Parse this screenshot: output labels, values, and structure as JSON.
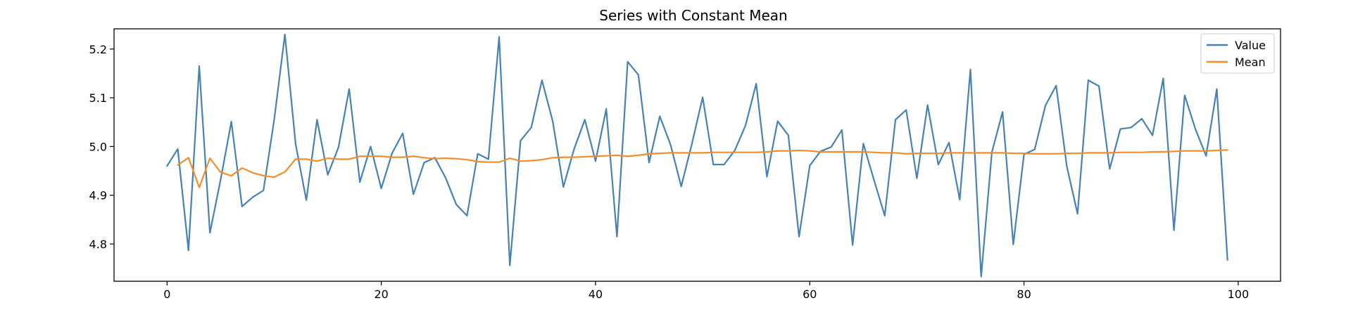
{
  "chart_data": {
    "type": "line",
    "title": "Series with Constant Mean",
    "xlabel": "",
    "ylabel": "",
    "xlim": [
      -4.95,
      103.95
    ],
    "ylim": [
      4.7235,
      5.2415
    ],
    "xticks": [
      0,
      20,
      40,
      60,
      80,
      100
    ],
    "xtick_labels": [
      "0",
      "20",
      "40",
      "60",
      "80",
      "100"
    ],
    "yticks": [
      4.8,
      4.9,
      5.0,
      5.1,
      5.2
    ],
    "ytick_labels": [
      "4.8",
      "4.9",
      "5.0",
      "5.1",
      "5.2"
    ],
    "grid": false,
    "legend_position": "upper right",
    "series": [
      {
        "name": "Value",
        "color": "#4682b4",
        "x": [
          0,
          1,
          2,
          3,
          4,
          5,
          6,
          7,
          8,
          9,
          10,
          11,
          12,
          13,
          14,
          15,
          16,
          17,
          18,
          19,
          20,
          21,
          22,
          23,
          24,
          25,
          26,
          27,
          28,
          29,
          30,
          31,
          32,
          33,
          34,
          35,
          36,
          37,
          38,
          39,
          40,
          41,
          42,
          43,
          44,
          45,
          46,
          47,
          48,
          49,
          50,
          51,
          52,
          53,
          54,
          55,
          56,
          57,
          58,
          59,
          60,
          61,
          62,
          63,
          64,
          65,
          66,
          67,
          68,
          69,
          70,
          71,
          72,
          73,
          74,
          75,
          76,
          77,
          78,
          79,
          80,
          81,
          82,
          83,
          84,
          85,
          86,
          87,
          88,
          89,
          90,
          91,
          92,
          93,
          94,
          95,
          96,
          97,
          98,
          99
        ],
        "values": [
          4.96,
          4.995,
          4.787,
          5.165,
          4.823,
          4.932,
          5.051,
          4.877,
          4.896,
          4.91,
          5.055,
          5.23,
          5.005,
          4.89,
          5.055,
          4.942,
          4.998,
          5.118,
          4.927,
          5.0,
          4.914,
          4.986,
          5.027,
          4.902,
          4.967,
          4.977,
          4.936,
          4.881,
          4.858,
          4.985,
          4.974,
          5.225,
          4.756,
          5.012,
          5.039,
          5.136,
          5.052,
          4.917,
          4.995,
          5.055,
          4.97,
          5.077,
          4.815,
          5.174,
          5.147,
          4.967,
          5.062,
          5.004,
          4.918,
          5.006,
          5.101,
          4.963,
          4.963,
          4.992,
          5.043,
          5.129,
          4.938,
          5.052,
          5.023,
          4.815,
          4.961,
          4.99,
          4.999,
          5.034,
          4.798,
          5.006,
          4.931,
          4.858,
          5.055,
          5.075,
          4.935,
          5.085,
          4.963,
          5.008,
          4.891,
          5.158,
          4.733,
          4.988,
          5.071,
          4.799,
          4.984,
          4.994,
          5.084,
          5.125,
          4.959,
          4.862,
          5.136,
          5.124,
          4.954,
          5.036,
          5.039,
          5.057,
          5.023,
          5.14,
          4.828,
          5.105,
          5.036,
          4.981,
          5.118,
          4.767
        ]
      },
      {
        "name": "Mean",
        "color": "#f28e2b",
        "x": [
          1,
          2,
          3,
          4,
          5,
          6,
          7,
          8,
          9,
          10,
          11,
          12,
          13,
          14,
          15,
          16,
          17,
          18,
          19,
          20,
          21,
          22,
          23,
          24,
          25,
          26,
          27,
          28,
          29,
          30,
          31,
          32,
          33,
          34,
          35,
          36,
          37,
          38,
          39,
          40,
          41,
          42,
          43,
          44,
          45,
          46,
          47,
          48,
          49,
          50,
          51,
          52,
          53,
          54,
          55,
          56,
          57,
          58,
          59,
          60,
          61,
          62,
          63,
          64,
          65,
          66,
          67,
          68,
          69,
          70,
          71,
          72,
          73,
          74,
          75,
          76,
          77,
          78,
          79,
          80,
          81,
          82,
          83,
          84,
          85,
          86,
          87,
          88,
          89,
          90,
          91,
          92,
          93,
          94,
          95,
          96,
          97,
          98,
          99
        ],
        "values": [
          4.962,
          4.977,
          4.916,
          4.976,
          4.947,
          4.94,
          4.956,
          4.946,
          4.94,
          4.937,
          4.948,
          4.974,
          4.974,
          4.97,
          4.976,
          4.974,
          4.974,
          4.98,
          4.98,
          4.98,
          4.978,
          4.978,
          4.98,
          4.977,
          4.975,
          4.976,
          4.975,
          4.973,
          4.969,
          4.968,
          4.968,
          4.976,
          4.97,
          4.971,
          4.973,
          4.977,
          4.978,
          4.978,
          4.979,
          4.98,
          4.981,
          4.982,
          4.98,
          4.982,
          4.985,
          4.986,
          4.987,
          4.987,
          4.987,
          4.987,
          4.988,
          4.988,
          4.988,
          4.988,
          4.988,
          4.989,
          4.991,
          4.991,
          4.992,
          4.991,
          4.989,
          4.989,
          4.989,
          4.989,
          4.989,
          4.988,
          4.987,
          4.987,
          4.985,
          4.986,
          4.986,
          4.986,
          4.987,
          4.987,
          4.987,
          4.987,
          4.987,
          4.987,
          4.986,
          4.986,
          4.985,
          4.985,
          4.985,
          4.986,
          4.986,
          4.987,
          4.987,
          4.987,
          4.988,
          4.988,
          4.988,
          4.989,
          4.989,
          4.99,
          4.991,
          4.991,
          4.991,
          4.992,
          4.993
        ]
      }
    ]
  }
}
